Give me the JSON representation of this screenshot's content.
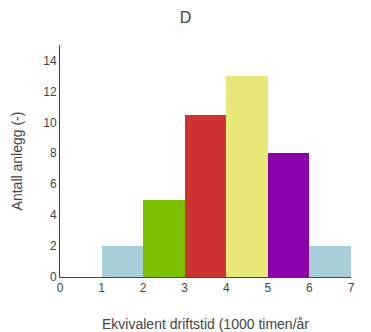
{
  "chart_data": {
    "type": "histogram",
    "title": "D",
    "xlabel": "Ekvivalent driftstid (1000 timen/år",
    "ylabel": "Antall anlegg (-)",
    "bins": [
      1,
      2,
      3,
      4,
      5,
      6,
      7
    ],
    "values": [
      2,
      5,
      10.5,
      13,
      8,
      2
    ],
    "colors": [
      "#a8cfd8",
      "#7dc000",
      "#cc3333",
      "#e8e878",
      "#8b00aa",
      "#a8cfd8"
    ],
    "xlim": [
      0,
      7
    ],
    "ylim": [
      0,
      15
    ],
    "xticks": [
      0,
      1,
      2,
      3,
      4,
      5,
      6,
      7
    ],
    "yticks": [
      0,
      2,
      4,
      6,
      8,
      10,
      12,
      14
    ],
    "grid": false
  }
}
